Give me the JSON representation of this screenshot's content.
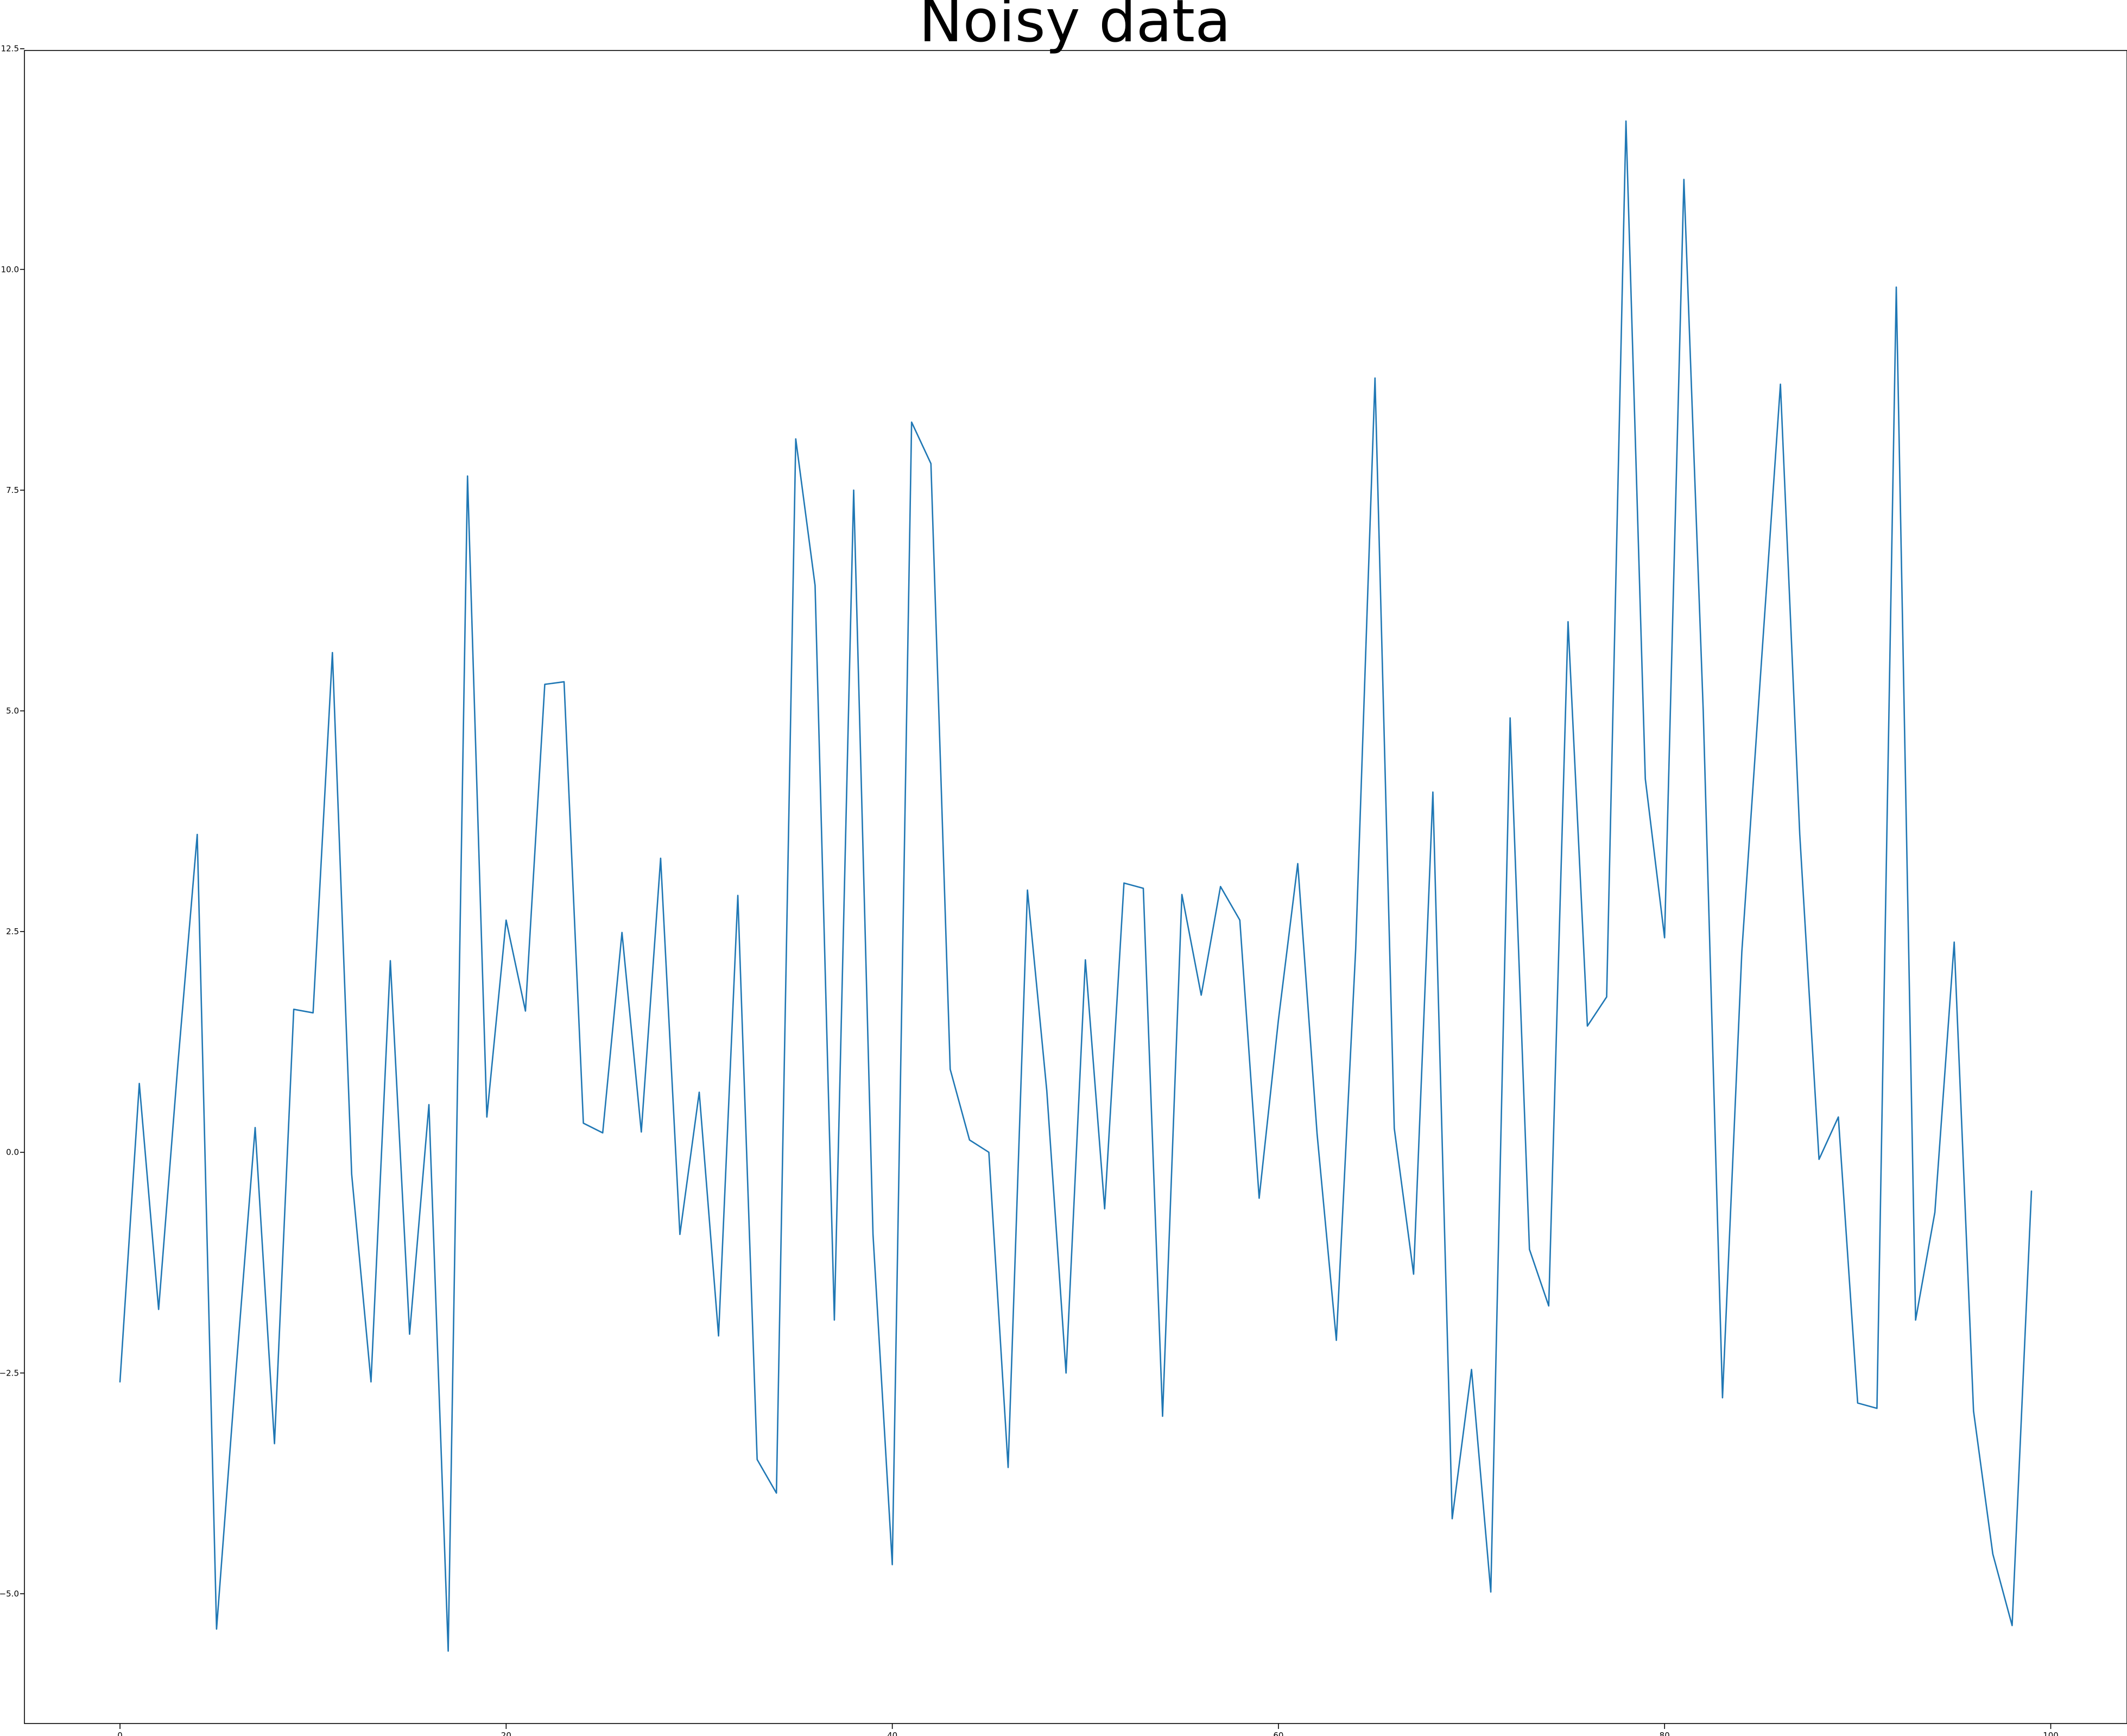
{
  "chart_data": {
    "type": "line",
    "title": "Noisy data",
    "xlabel": "",
    "ylabel": "",
    "xlim": [
      -4.95,
      103.95
    ],
    "ylim": [
      -6.47,
      12.48
    ],
    "xticks": [
      0,
      20,
      40,
      60,
      80,
      100
    ],
    "yticks": [
      -5.0,
      -2.5,
      0.0,
      2.5,
      5.0,
      7.5,
      10.0,
      12.5
    ],
    "xtick_labels": [
      "0",
      "20",
      "40",
      "60",
      "80",
      "100"
    ],
    "ytick_labels": [
      "−5.0",
      "−2.5",
      "0.0",
      "2.5",
      "5.0",
      "7.5",
      "10.0",
      "12.5"
    ],
    "grid": false,
    "line_color": "#1f77b4",
    "series": [
      {
        "x": [
          0,
          1,
          2,
          3,
          4,
          5,
          6,
          7,
          8,
          9,
          10,
          11,
          12,
          13,
          14,
          15,
          16,
          17,
          18,
          19,
          20,
          21,
          22,
          23,
          24,
          25,
          26,
          27,
          28,
          29,
          30,
          31,
          32,
          33,
          34,
          35,
          36,
          37,
          38,
          39,
          40,
          41,
          42,
          43,
          44,
          45,
          46,
          47,
          48,
          49,
          50,
          51,
          52,
          53,
          54,
          55,
          56,
          57,
          58,
          59,
          60,
          61,
          62,
          63,
          64,
          65,
          66,
          67,
          68,
          69,
          70,
          71,
          72,
          73,
          74,
          75,
          76,
          77,
          78,
          79,
          80,
          81,
          82,
          83,
          84,
          85,
          86,
          87,
          88,
          89,
          90,
          91,
          92,
          93,
          94,
          95,
          96,
          97,
          98,
          99
        ],
        "values": [
          -2.6,
          0.78,
          -1.78,
          1.0,
          3.6,
          -5.4,
          -2.5,
          0.28,
          -3.3,
          1.62,
          1.58,
          5.66,
          -0.25,
          -2.6,
          2.17,
          -2.06,
          0.54,
          -5.65,
          7.66,
          0.4,
          2.63,
          1.6,
          5.3,
          5.33,
          0.33,
          0.22,
          2.49,
          0.23,
          3.33,
          -0.93,
          0.68,
          -2.08,
          2.91,
          -3.48,
          -3.86,
          8.08,
          6.42,
          -1.9,
          7.5,
          -0.93,
          -4.67,
          8.27,
          7.8,
          0.94,
          0.14,
          0.0,
          -3.57,
          2.97,
          0.7,
          -2.5,
          2.18,
          -0.64,
          3.05,
          2.99,
          -2.99,
          2.92,
          1.78,
          3.01,
          2.63,
          -0.52,
          1.5,
          3.27,
          0.21,
          -2.13,
          2.3,
          8.77,
          0.27,
          -1.38,
          4.08,
          -4.15,
          -2.46,
          -4.98,
          4.92,
          -1.1,
          -1.74,
          6.01,
          1.43,
          1.76,
          11.68,
          4.23,
          2.43,
          11.02,
          5.0,
          -2.78,
          2.27,
          5.5,
          8.7,
          3.6,
          -0.08,
          0.4,
          -2.84,
          -2.9,
          9.8,
          -1.9,
          -0.68,
          2.38,
          -2.93,
          -4.55,
          -5.36,
          -0.44
        ]
      }
    ]
  }
}
